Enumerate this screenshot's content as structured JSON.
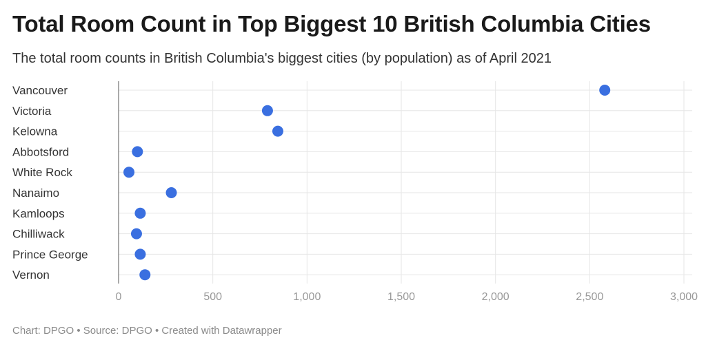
{
  "title": "Total Room Count in Top Biggest 10 British Columbia Cities",
  "subtitle": "The total room counts in British Columbia's biggest cities (by population) as of April 2021",
  "footer": "Chart: DPGO • Source: DPGO • Created with Datawrapper",
  "colors": {
    "dot": "#3a6fe0",
    "grid": "#e6e6e6",
    "axis": "#555555"
  },
  "chart_data": {
    "type": "scatter",
    "title": "Total Room Count in Top Biggest 10 British Columbia Cities",
    "subtitle": "The total room counts in British Columbia's biggest cities (by population) as of April 2021",
    "categories": [
      "Vancouver",
      "Victoria",
      "Kelowna",
      "Abbotsford",
      "White Rock",
      "Nanaimo",
      "Kamloops",
      "Chilliwack",
      "Prince George",
      "Vernon"
    ],
    "values": [
      2580,
      790,
      845,
      100,
      55,
      280,
      115,
      95,
      115,
      140
    ],
    "xlim": [
      0,
      3000
    ],
    "xticks": [
      0,
      500,
      1000,
      1500,
      2000,
      2500,
      3000
    ],
    "xtick_labels": [
      "0",
      "500",
      "1,000",
      "1,500",
      "2,000",
      "2,500",
      "3,000"
    ],
    "grid": true,
    "legend": "none"
  }
}
